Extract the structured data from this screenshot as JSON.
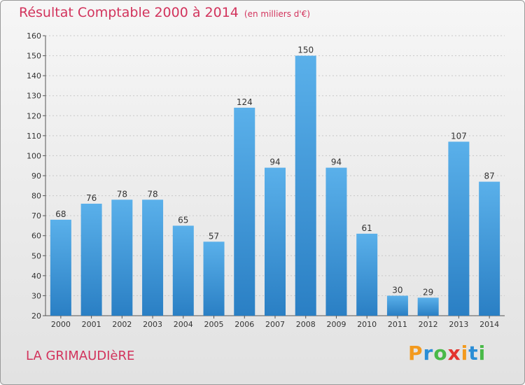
{
  "chart_data": {
    "type": "bar",
    "title": "Résultat Comptable 2000 à 2014",
    "subtitle": "(en milliers d'€)",
    "categories": [
      "2000",
      "2001",
      "2002",
      "2003",
      "2004",
      "2005",
      "2006",
      "2007",
      "2008",
      "2009",
      "2010",
      "2011",
      "2012",
      "2013",
      "2014"
    ],
    "values": [
      68,
      76,
      78,
      78,
      65,
      57,
      124,
      94,
      150,
      94,
      61,
      30,
      29,
      107,
      87
    ],
    "ylim": [
      20,
      160
    ],
    "yticks": [
      20,
      30,
      40,
      50,
      60,
      70,
      80,
      90,
      100,
      110,
      120,
      130,
      140,
      150,
      160
    ],
    "xlabel": "",
    "ylabel": "",
    "grid": true,
    "bar_color_light": "#5ab0ea",
    "bar_color_dark": "#2a7fc4"
  },
  "footer": {
    "commune": "LA GRIMAUDIèRE",
    "logo_text": "Proxiti"
  },
  "colors": {
    "title": "#d2335c",
    "logo": [
      "#f39a1e",
      "#2b8ed6",
      "#49b948",
      "#e3342f",
      "#f39a1e",
      "#2b8ed6",
      "#49b948"
    ]
  }
}
